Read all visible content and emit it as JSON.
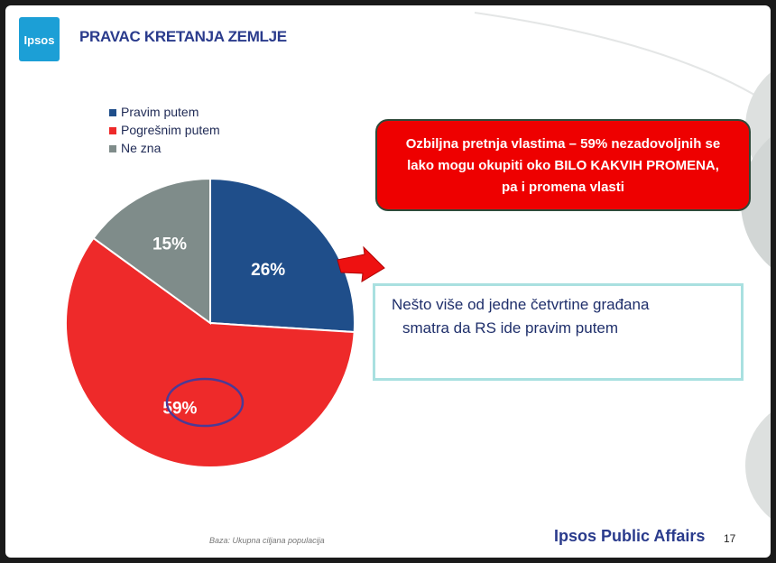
{
  "header": {
    "logo_text": "Ipsos",
    "title": "PRAVAC KRETANJA ZEMLJE"
  },
  "chart_data": {
    "type": "pie",
    "title": "",
    "categories": [
      "Pravim putem",
      "Pogrešnim putem",
      "Ne zna"
    ],
    "values": [
      26,
      59,
      15
    ],
    "labels": [
      "26%",
      "59%",
      "15%"
    ],
    "colors": [
      "#1f4e8a",
      "#ee2a2a",
      "#7f8c8a"
    ],
    "legend_position": "top-left",
    "highlighted": "59%"
  },
  "callouts": {
    "red_lines": [
      "Ozbiljna pretnja vlastima – 59% nezadovoljnih se",
      "lako mogu okupiti oko BILO KAKVIH PROMENA,",
      "pa i promena vlasti"
    ],
    "blue_lines": [
      "Nešto više od jedne  četvrtine građana",
      "smatra da RS ide pravim putem"
    ]
  },
  "footer": {
    "base_note": "Baza: Ukupna ciljana populacija",
    "brand": "Ipsos Public Affairs",
    "page_number": "17"
  }
}
